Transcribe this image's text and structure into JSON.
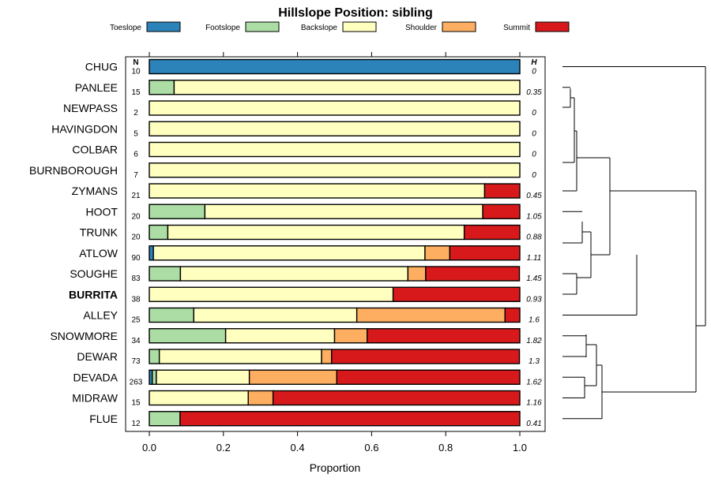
{
  "chart_data": {
    "type": "bar",
    "stacked": true,
    "orientation": "horizontal",
    "title": "Hillslope Position: sibling",
    "xlabel": "Proportion",
    "xlim": [
      0,
      1
    ],
    "xticks": [
      "0.0",
      "0.2",
      "0.4",
      "0.6",
      "0.8",
      "1.0"
    ],
    "n_header": "N",
    "h_header": "H",
    "highlight": "BURRITA",
    "legend": [
      {
        "name": "Toeslope",
        "color": "#2b83ba"
      },
      {
        "name": "Footslope",
        "color": "#abdda4"
      },
      {
        "name": "Backslope",
        "color": "#ffffbf"
      },
      {
        "name": "Shoulder",
        "color": "#fdae61"
      },
      {
        "name": "Summit",
        "color": "#d7191c"
      }
    ],
    "rows": [
      {
        "name": "CHUG",
        "n": "10",
        "h": "0",
        "values": [
          1.0,
          0,
          0,
          0,
          0
        ]
      },
      {
        "name": "PANLEE",
        "n": "15",
        "h": "0.35",
        "values": [
          0,
          0.067,
          0.933,
          0,
          0
        ]
      },
      {
        "name": "NEWPASS",
        "n": "2",
        "h": "0",
        "values": [
          0,
          0,
          1.0,
          0,
          0
        ]
      },
      {
        "name": "HAVINGDON",
        "n": "5",
        "h": "0",
        "values": [
          0,
          0,
          1.0,
          0,
          0
        ]
      },
      {
        "name": "COLBAR",
        "n": "6",
        "h": "0",
        "values": [
          0,
          0,
          1.0,
          0,
          0
        ]
      },
      {
        "name": "BURNBOROUGH",
        "n": "7",
        "h": "0",
        "values": [
          0,
          0,
          1.0,
          0,
          0
        ]
      },
      {
        "name": "ZYMANS",
        "n": "21",
        "h": "0.45",
        "values": [
          0,
          0,
          0.905,
          0,
          0.095
        ]
      },
      {
        "name": "HOOT",
        "n": "20",
        "h": "1.05",
        "values": [
          0,
          0.15,
          0.75,
          0,
          0.1
        ]
      },
      {
        "name": "TRUNK",
        "n": "20",
        "h": "0.88",
        "values": [
          0,
          0.05,
          0.8,
          0,
          0.15
        ]
      },
      {
        "name": "ATLOW",
        "n": "90",
        "h": "1.11",
        "values": [
          0.011,
          0,
          0.733,
          0.067,
          0.189
        ]
      },
      {
        "name": "SOUGHE",
        "n": "83",
        "h": "1.45",
        "values": [
          0,
          0.084,
          0.614,
          0.048,
          0.253
        ]
      },
      {
        "name": "BURRITA",
        "n": "38",
        "h": "0.93",
        "values": [
          0,
          0,
          0.658,
          0,
          0.342
        ]
      },
      {
        "name": "ALLEY",
        "n": "25",
        "h": "1.6",
        "values": [
          0,
          0.12,
          0.44,
          0.4,
          0.04
        ]
      },
      {
        "name": "SNOWMORE",
        "n": "34",
        "h": "1.82",
        "values": [
          0,
          0.206,
          0.294,
          0.088,
          0.412
        ]
      },
      {
        "name": "DEWAR",
        "n": "73",
        "h": "1.3",
        "values": [
          0,
          0.027,
          0.438,
          0.027,
          0.507
        ]
      },
      {
        "name": "DEVADA",
        "n": "263",
        "h": "1.62",
        "values": [
          0.008,
          0.011,
          0.251,
          0.236,
          0.494
        ]
      },
      {
        "name": "MIDRAW",
        "n": "15",
        "h": "1.16",
        "values": [
          0,
          0,
          0.267,
          0.067,
          0.666
        ]
      },
      {
        "name": "FLUE",
        "n": "12",
        "h": "0.41",
        "values": [
          0,
          0.083,
          0,
          0,
          0.917
        ]
      }
    ]
  }
}
